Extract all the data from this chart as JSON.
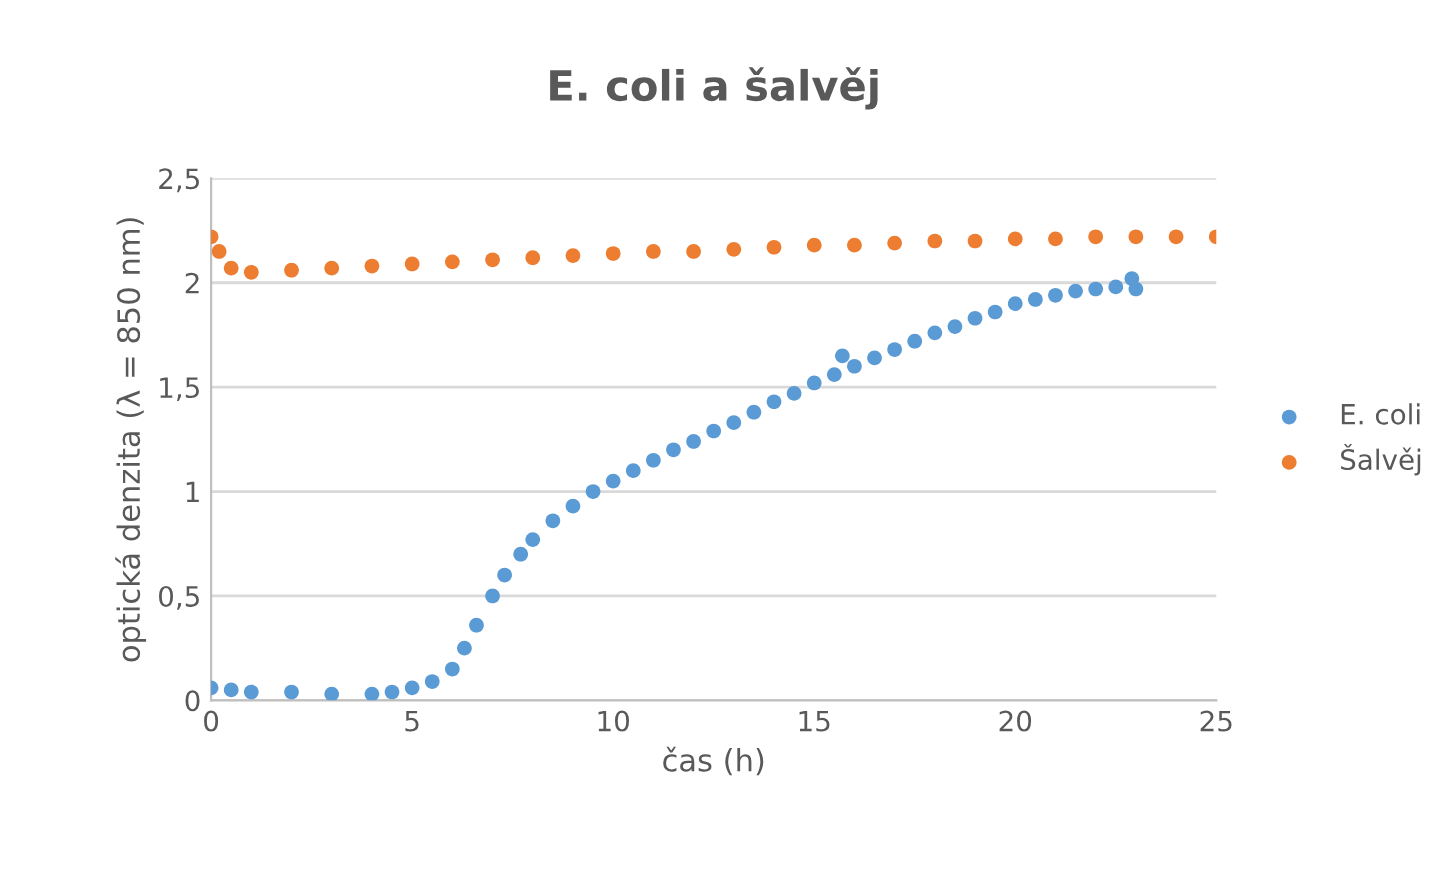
{
  "chart_data": {
    "type": "scatter",
    "title": "E. coli a šalvěj",
    "xlabel": "čas (h)",
    "ylabel": "optická denzita (λ = 850 nm)",
    "series": [
      {
        "name": "E. coli",
        "color": "#5b9bd5",
        "x": [
          0,
          0.5,
          1,
          2,
          3,
          4,
          4.5,
          5,
          5.5,
          6,
          6.3,
          6.6,
          7,
          7.3,
          7.7,
          8,
          8.5,
          9,
          9.5,
          10,
          10.5,
          11,
          11.5,
          12,
          12.5,
          13,
          13.5,
          14,
          14.5,
          15,
          15.5,
          15.7,
          16,
          16.5,
          17,
          17.5,
          18,
          18.5,
          19,
          19.5,
          20,
          20.5,
          21,
          21.5,
          22,
          22.5,
          22.9,
          23
        ],
        "values": [
          0.06,
          0.05,
          0.04,
          0.04,
          0.03,
          0.03,
          0.04,
          0.06,
          0.09,
          0.15,
          0.25,
          0.36,
          0.5,
          0.6,
          0.7,
          0.77,
          0.86,
          0.93,
          1.0,
          1.05,
          1.1,
          1.15,
          1.2,
          1.24,
          1.29,
          1.33,
          1.38,
          1.43,
          1.47,
          1.52,
          1.56,
          1.65,
          1.6,
          1.64,
          1.68,
          1.72,
          1.76,
          1.79,
          1.83,
          1.86,
          1.9,
          1.92,
          1.94,
          1.96,
          1.97,
          1.98,
          2.02,
          1.97
        ]
      },
      {
        "name": "Šalvěj",
        "color": "#ed7d31",
        "x": [
          0,
          0.2,
          0.5,
          1,
          2,
          3,
          4,
          5,
          6,
          7,
          8,
          9,
          10,
          11,
          12,
          13,
          14,
          15,
          16,
          17,
          18,
          19,
          20,
          21,
          22,
          23,
          24,
          25
        ],
        "values": [
          2.22,
          2.15,
          2.07,
          2.05,
          2.06,
          2.07,
          2.08,
          2.09,
          2.1,
          2.11,
          2.12,
          2.13,
          2.14,
          2.15,
          2.15,
          2.16,
          2.17,
          2.18,
          2.18,
          2.19,
          2.2,
          2.2,
          2.21,
          2.21,
          2.22,
          2.22,
          2.22,
          2.22
        ]
      }
    ],
    "xlim": [
      0,
      25
    ],
    "xticks": [
      0,
      5,
      10,
      15,
      20,
      25
    ],
    "ylim": [
      0,
      2.5
    ],
    "yticks": [
      0,
      {
        "value": 0.5,
        "label": "0,5"
      },
      1,
      {
        "value": 1.5,
        "label": "1,5"
      },
      2,
      {
        "value": 2.5,
        "label": "2,5"
      }
    ],
    "grid": "y",
    "legend": "right",
    "marker": "circle"
  }
}
